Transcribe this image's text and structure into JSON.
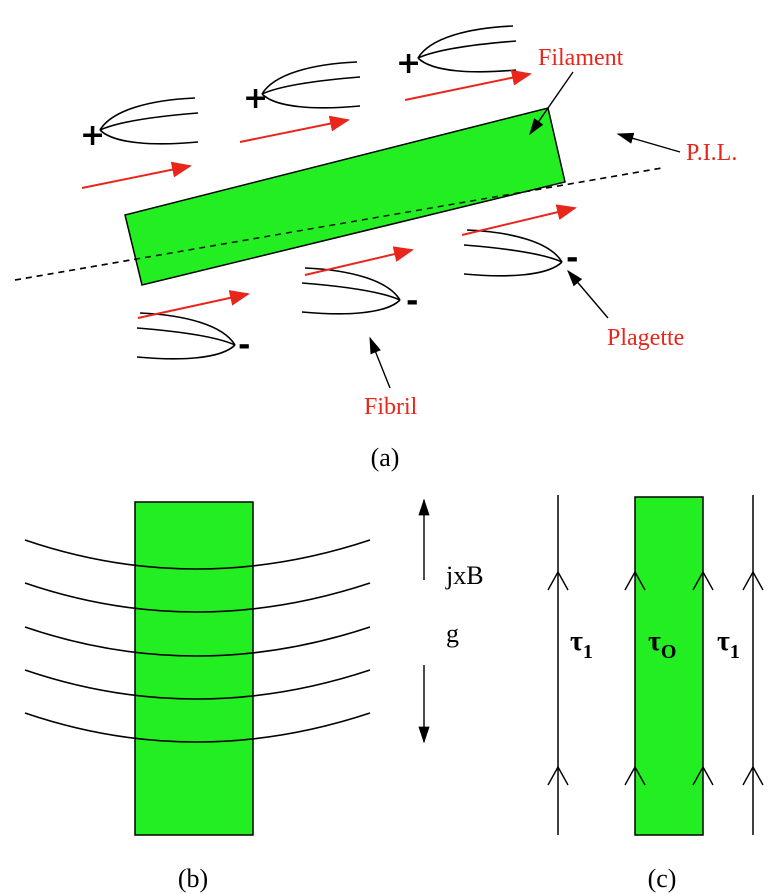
{
  "panel_a": {
    "label": "(a)",
    "annotations": {
      "filament": "Filament",
      "pil": "P.I.L.",
      "plagette": "Plagette",
      "fibril": "Fibril"
    },
    "positive_polarity": [
      "+",
      "+",
      "+"
    ],
    "negative_polarity": [
      "-",
      "-",
      "-"
    ]
  },
  "panel_b": {
    "label": "(b)",
    "force_labels": [
      "jxB",
      "g"
    ]
  },
  "panel_c": {
    "label": "(c)",
    "regions": [
      {
        "symbol": "τ",
        "subscript": "1"
      },
      {
        "symbol": "τ",
        "subscript": "O"
      },
      {
        "symbol": "τ",
        "subscript": "1"
      }
    ]
  }
}
